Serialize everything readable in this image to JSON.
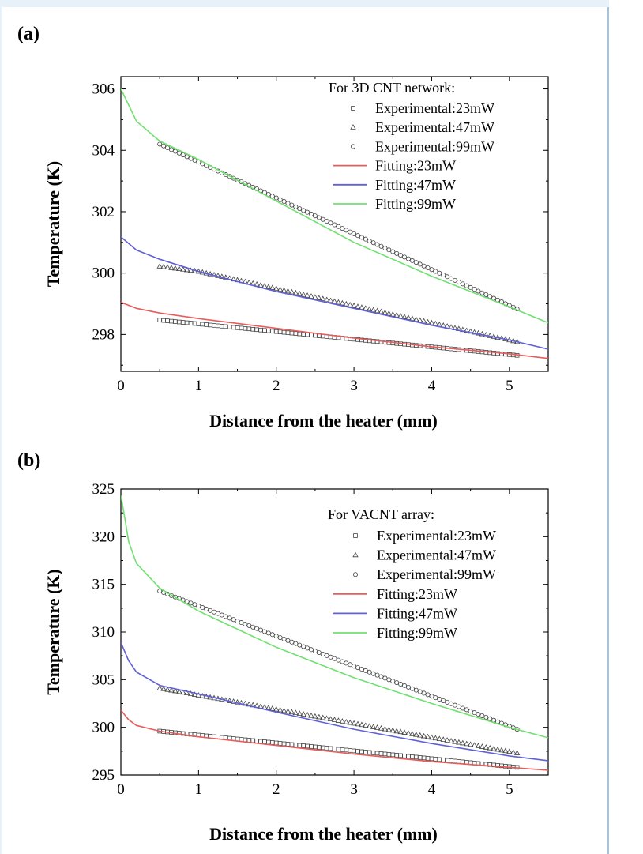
{
  "chart_data": [
    {
      "type": "line",
      "panel_label": "(a)",
      "xlabel": "Distance from the heater (mm)",
      "ylabel": "Temperature (K)",
      "xlim": [
        0,
        5.5
      ],
      "ylim": [
        296.8,
        306.4
      ],
      "x_ticks": [
        "0",
        "1",
        "2",
        "3",
        "4",
        "5"
      ],
      "y_ticks": [
        "298",
        "300",
        "302",
        "304",
        "306"
      ],
      "legend_title": "For 3D CNT network:",
      "legend_position": "top-right",
      "grid": false,
      "series": [
        {
          "name": "Experimental:23mW",
          "kind": "experimental",
          "marker": "square",
          "x": [
            0.5,
            5.1
          ],
          "y": [
            298.47,
            297.32
          ]
        },
        {
          "name": "Experimental:47mW",
          "kind": "experimental",
          "marker": "triangle",
          "x": [
            0.5,
            1.0,
            5.1
          ],
          "y": [
            300.22,
            300.05,
            297.76
          ]
        },
        {
          "name": "Experimental:99mW",
          "kind": "experimental",
          "marker": "circle",
          "x": [
            0.5,
            5.1
          ],
          "y": [
            304.2,
            298.83
          ]
        },
        {
          "name": "Fitting:23mW",
          "kind": "fitting",
          "color": "#e85c5c",
          "x": [
            0,
            0.2,
            0.5,
            1.0,
            2.0,
            3.0,
            4.0,
            5.0,
            5.5
          ],
          "y": [
            299.05,
            298.85,
            298.7,
            298.52,
            298.2,
            297.88,
            297.6,
            297.37,
            297.22
          ]
        },
        {
          "name": "Fitting:47mW",
          "kind": "fitting",
          "color": "#6060d8",
          "x": [
            0,
            0.2,
            0.5,
            1.0,
            2.0,
            3.0,
            4.0,
            5.0,
            5.5
          ],
          "y": [
            301.18,
            300.75,
            300.45,
            300.05,
            299.4,
            298.85,
            298.3,
            297.82,
            297.52
          ]
        },
        {
          "name": "Fitting:99mW",
          "kind": "fitting",
          "color": "#70e070",
          "x": [
            0,
            0.2,
            0.5,
            1.0,
            2.0,
            3.0,
            4.0,
            5.0,
            5.5
          ],
          "y": [
            306.0,
            304.95,
            304.3,
            303.7,
            302.35,
            301.0,
            299.9,
            298.9,
            298.38
          ]
        }
      ]
    },
    {
      "type": "line",
      "panel_label": "(b)",
      "xlabel": "Distance from the heater (mm)",
      "ylabel": "Temperature (K)",
      "xlim": [
        0,
        5.5
      ],
      "ylim": [
        295,
        325
      ],
      "x_ticks": [
        "0",
        "1",
        "2",
        "3",
        "4",
        "5"
      ],
      "y_ticks": [
        "295",
        "300",
        "305",
        "310",
        "315",
        "320",
        "325"
      ],
      "legend_title": "For VACNT array:",
      "legend_position": "top-right",
      "grid": false,
      "series": [
        {
          "name": "Experimental:23mW",
          "kind": "experimental",
          "marker": "square",
          "x": [
            0.5,
            5.1
          ],
          "y": [
            299.6,
            295.8
          ]
        },
        {
          "name": "Experimental:47mW",
          "kind": "experimental",
          "marker": "triangle",
          "x": [
            0.5,
            5.1
          ],
          "y": [
            304.1,
            297.3
          ]
        },
        {
          "name": "Experimental:99mW",
          "kind": "experimental",
          "marker": "circle",
          "x": [
            0.5,
            5.1
          ],
          "y": [
            314.3,
            299.8
          ]
        },
        {
          "name": "Fitting:23mW",
          "kind": "fitting",
          "color": "#e85c5c",
          "x": [
            0,
            0.1,
            0.2,
            0.5,
            1.0,
            2.0,
            3.0,
            4.0,
            5.0,
            5.5
          ],
          "y": [
            301.8,
            300.8,
            300.2,
            299.6,
            299.0,
            298.1,
            297.2,
            296.4,
            295.8,
            295.5
          ]
        },
        {
          "name": "Fitting:47mW",
          "kind": "fitting",
          "color": "#6060d8",
          "x": [
            0,
            0.1,
            0.2,
            0.5,
            1.0,
            2.0,
            3.0,
            4.0,
            5.0,
            5.5
          ],
          "y": [
            308.9,
            307.0,
            305.8,
            304.4,
            303.5,
            301.6,
            299.8,
            298.3,
            297.0,
            296.5
          ]
        },
        {
          "name": "Fitting:99mW",
          "kind": "fitting",
          "color": "#70e070",
          "x": [
            0,
            0.05,
            0.1,
            0.2,
            0.5,
            1.0,
            1.5,
            2.0,
            3.0,
            4.0,
            5.0,
            5.5
          ],
          "y": [
            324.3,
            322.0,
            319.5,
            317.2,
            314.6,
            312.2,
            310.3,
            308.4,
            305.2,
            302.5,
            300.0,
            298.9
          ]
        }
      ]
    }
  ]
}
